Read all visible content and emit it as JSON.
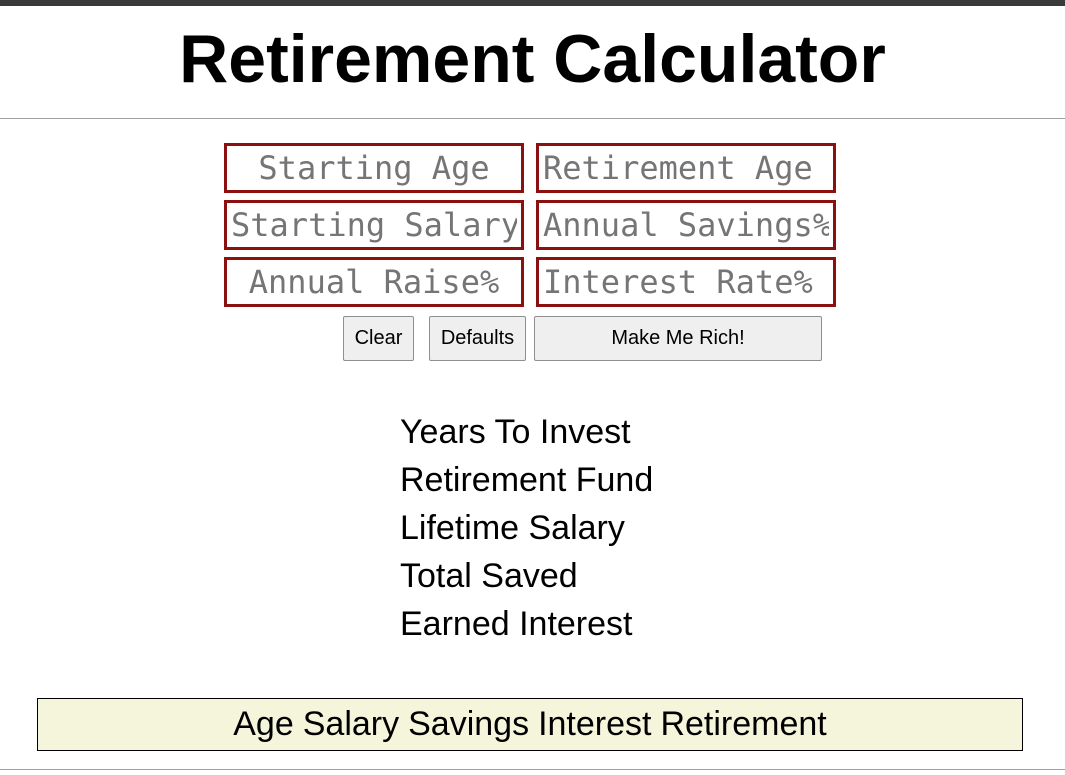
{
  "header": {
    "title": "Retirement Calculator"
  },
  "inputs": {
    "starting_age": {
      "value": "",
      "placeholder": "Starting Age"
    },
    "retirement_age": {
      "value": "",
      "placeholder": "Retirement Age"
    },
    "starting_salary": {
      "value": "",
      "placeholder": "Starting Salary"
    },
    "annual_savings": {
      "value": "",
      "placeholder": "Annual Savings%"
    },
    "annual_raise": {
      "value": "",
      "placeholder": "Annual Raise%"
    },
    "interest_rate": {
      "value": "",
      "placeholder": "Interest Rate%"
    }
  },
  "buttons": {
    "clear": "Clear",
    "defaults": "Defaults",
    "make_rich": "Make Me Rich!"
  },
  "results": {
    "years_to_invest": "Years To Invest",
    "retirement_fund": "Retirement Fund",
    "lifetime_salary": "Lifetime Salary",
    "total_saved": "Total Saved",
    "earned_interest": "Earned Interest"
  },
  "table": {
    "columns": [
      "Age",
      "Salary",
      "Savings",
      "Interest",
      "Retirement"
    ]
  },
  "colors": {
    "input_border": "#8b1010",
    "table_header_bg": "#f5f5dc",
    "top_bar": "#3a3a3a"
  }
}
